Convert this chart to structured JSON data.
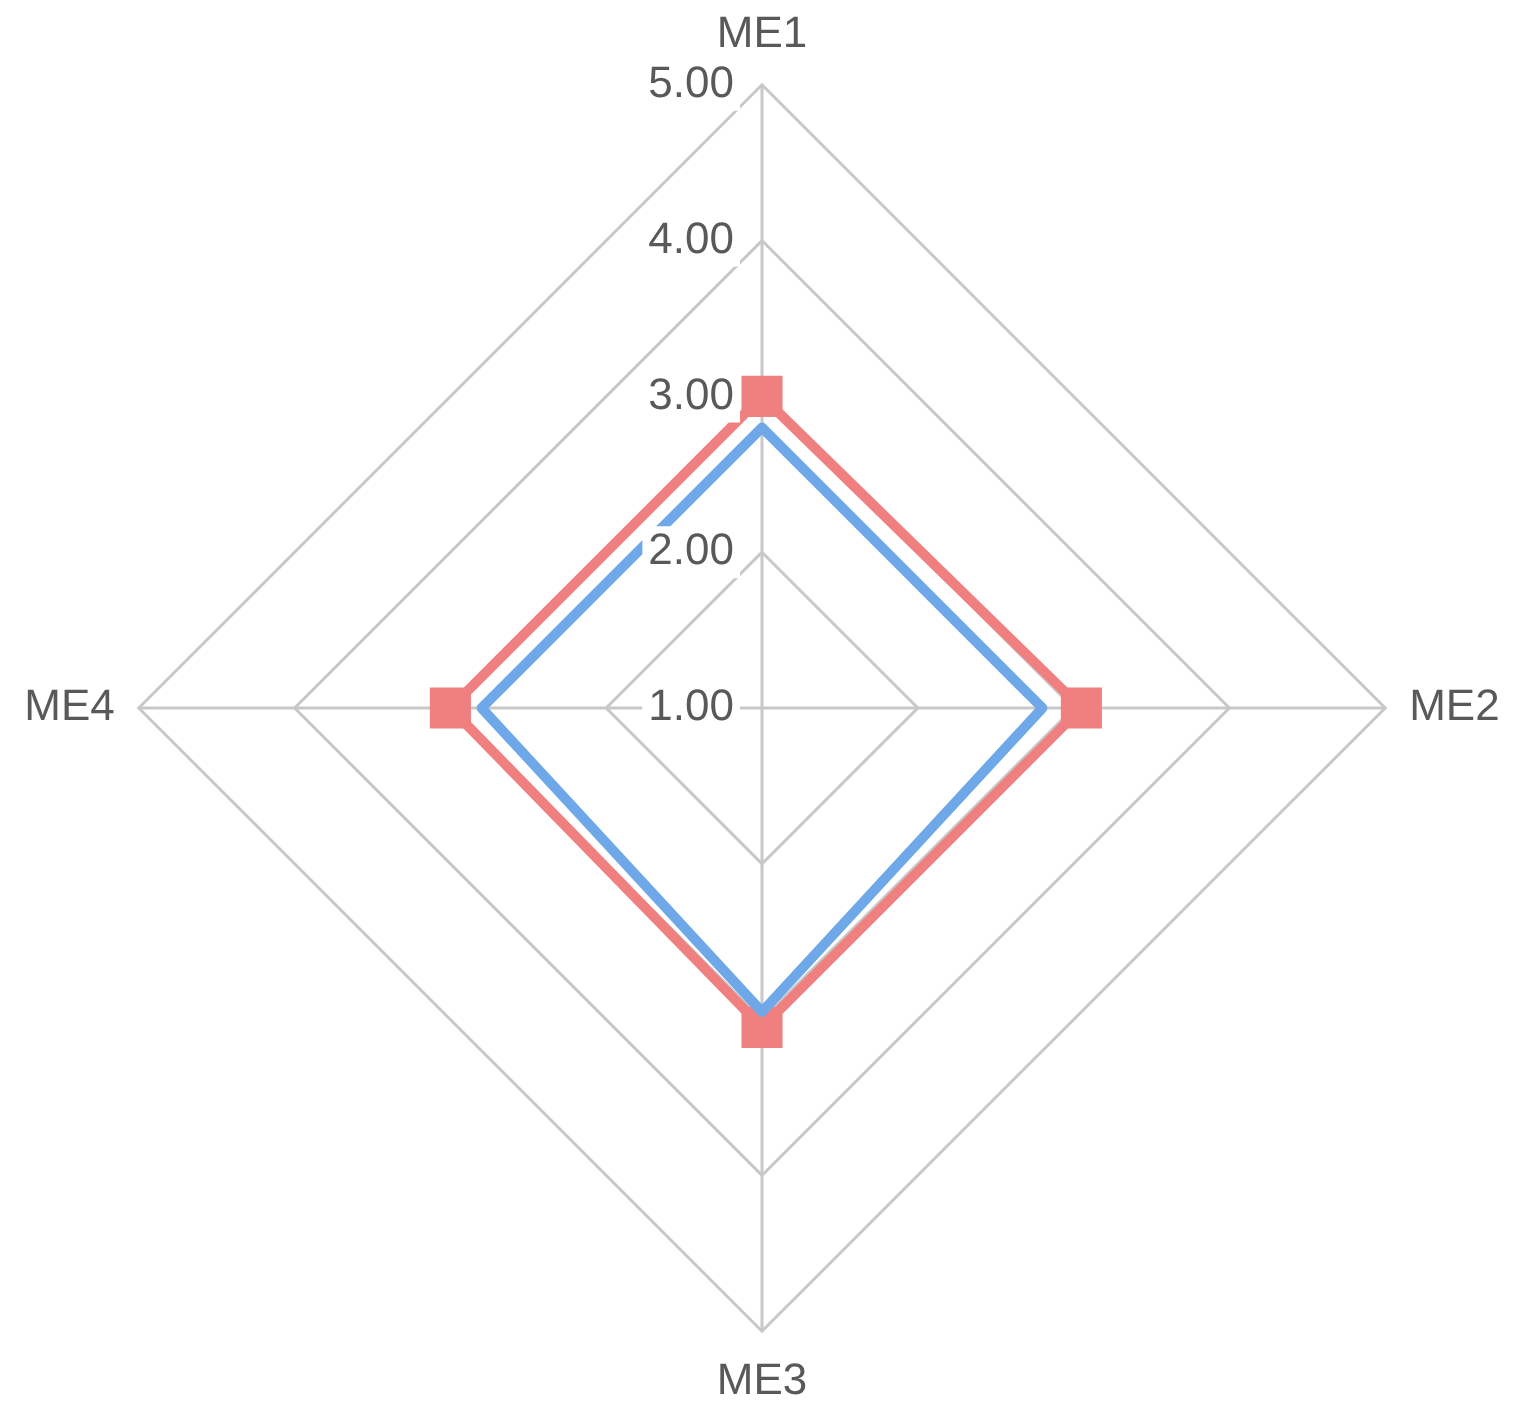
{
  "chart_data": {
    "type": "radar",
    "categories": [
      "ME1",
      "ME2",
      "ME3",
      "ME4"
    ],
    "series": [
      {
        "color": "#6fa8e8",
        "values": [
          2.8,
          2.8,
          2.95,
          2.8
        ],
        "marker": "none"
      },
      {
        "color": "#f08080",
        "values": [
          3.0,
          3.05,
          3.05,
          3.0
        ],
        "marker": "square"
      }
    ],
    "ylim": [
      1,
      5
    ],
    "yticks": [
      {
        "value": 1,
        "label": "1.00"
      },
      {
        "value": 2,
        "label": "2.00"
      },
      {
        "value": 3,
        "label": "3.00"
      },
      {
        "value": 4,
        "label": "4.00"
      },
      {
        "value": 5,
        "label": "5.00"
      }
    ],
    "grid": true,
    "legend": false
  }
}
